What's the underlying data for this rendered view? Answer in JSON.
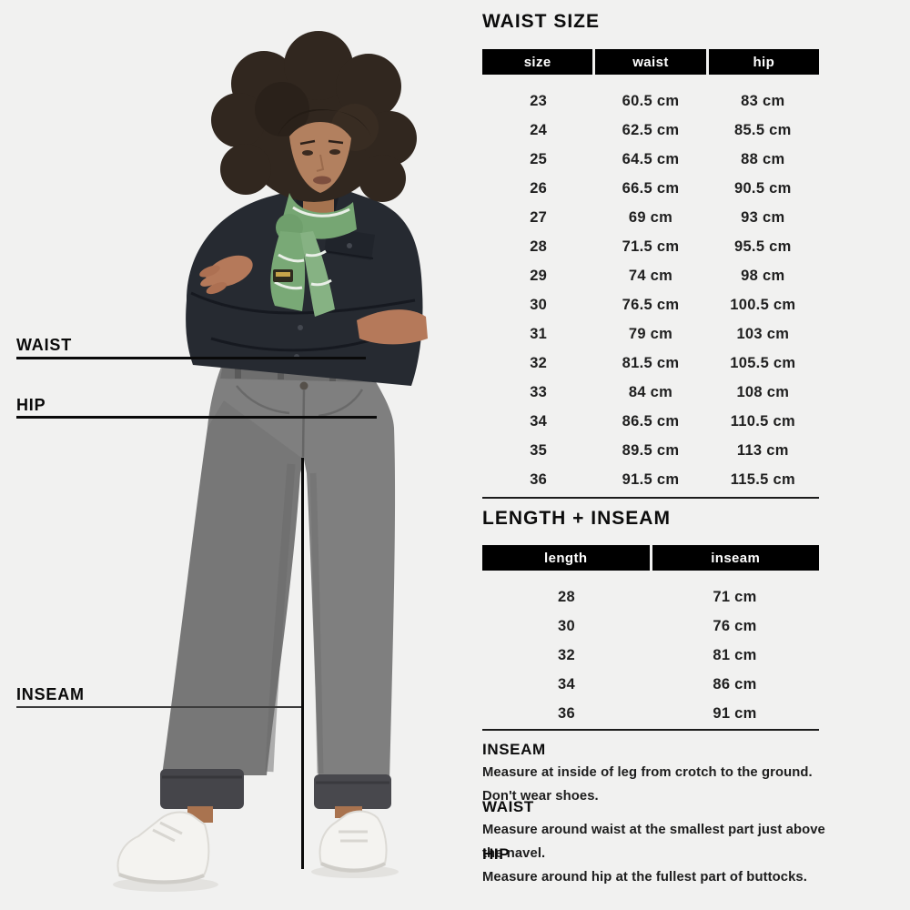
{
  "chart_data": [
    {
      "type": "table",
      "title": "WAIST SIZE",
      "columns": [
        "size",
        "waist",
        "hip"
      ],
      "rows": [
        [
          "23",
          "60.5 cm",
          "83 cm"
        ],
        [
          "24",
          "62.5 cm",
          "85.5 cm"
        ],
        [
          "25",
          "64.5 cm",
          "88 cm"
        ],
        [
          "26",
          "66.5 cm",
          "90.5 cm"
        ],
        [
          "27",
          "69 cm",
          "93 cm"
        ],
        [
          "28",
          "71.5 cm",
          "95.5 cm"
        ],
        [
          "29",
          "74 cm",
          "98 cm"
        ],
        [
          "30",
          "76.5 cm",
          "100.5 cm"
        ],
        [
          "31",
          "79 cm",
          "103 cm"
        ],
        [
          "32",
          "81.5 cm",
          "105.5 cm"
        ],
        [
          "33",
          "84 cm",
          "108 cm"
        ],
        [
          "34",
          "86.5 cm",
          "110.5 cm"
        ],
        [
          "35",
          "89.5 cm",
          "113 cm"
        ],
        [
          "36",
          "91.5 cm",
          "115.5 cm"
        ]
      ]
    },
    {
      "type": "table",
      "title": "LENGTH + INSEAM",
      "columns": [
        "length",
        "inseam"
      ],
      "rows": [
        [
          "28",
          "71 cm"
        ],
        [
          "30",
          "76 cm"
        ],
        [
          "32",
          "81 cm"
        ],
        [
          "34",
          "86 cm"
        ],
        [
          "36",
          "91 cm"
        ]
      ]
    }
  ],
  "figure_labels": {
    "waist": "WAIST",
    "hip": "HIP",
    "inseam": "INSEAM"
  },
  "notes": {
    "inseam": {
      "heading": "INSEAM",
      "body": "Measure at inside of leg from crotch to the ground.\nDon't wear shoes."
    },
    "waist": {
      "heading": "WAIST",
      "body": "Measure around waist at the smallest part just above the navel."
    },
    "hip": {
      "heading": "HIP",
      "body": "Measure around hip at the fullest part of buttocks."
    }
  },
  "colors": {
    "page_bg": "#f1f1f0",
    "header_bg": "#000000",
    "header_text": "#ffffff",
    "text": "#111111",
    "annotation_line": "#0a0a0a",
    "scarf_green": "#76a673",
    "denim_shirt": "#262a31",
    "jeans_gray": "#7f7f7f"
  }
}
